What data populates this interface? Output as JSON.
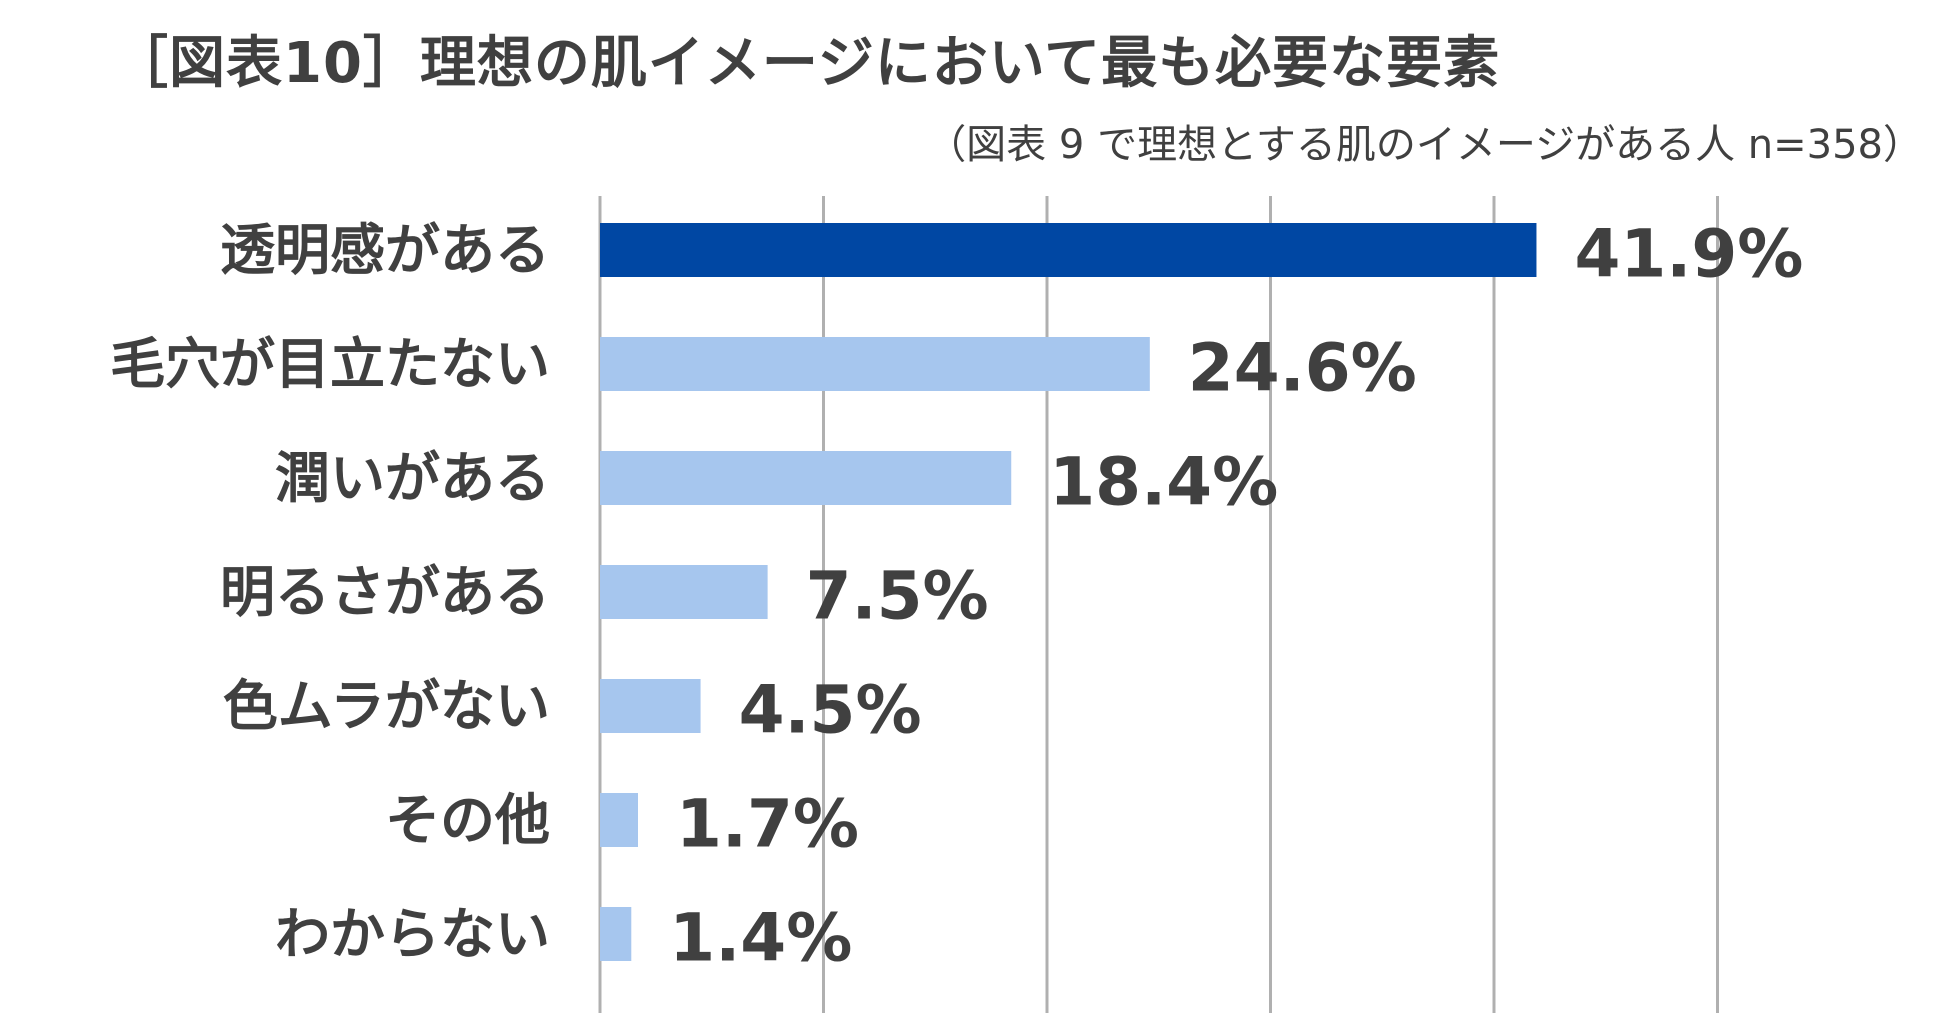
{
  "chart_data": {
    "type": "bar",
    "orientation": "horizontal",
    "title": "［図表10］理想の肌イメージにおいて最も必要な要素",
    "subtitle": "（図表 9 で理想とする肌のイメージがある人  n=358）",
    "categories": [
      "透明感がある",
      "毛穴が目立たない",
      "潤いがある",
      "明るさがある",
      "色ムラがない",
      "その他",
      "わからない"
    ],
    "values": [
      41.9,
      24.6,
      18.4,
      7.5,
      4.5,
      1.7,
      1.4
    ],
    "value_labels": [
      "41.9%",
      "24.6%",
      "18.4%",
      "7.5%",
      "4.5%",
      "1.7%",
      "1.4%"
    ],
    "xlim": [
      0,
      50
    ],
    "grid": true,
    "legend": "none",
    "colors": {
      "highlight": "#0047A3",
      "bar": "#A6C6EE",
      "gridline": "#B0B0B0",
      "text": "#404040"
    }
  }
}
